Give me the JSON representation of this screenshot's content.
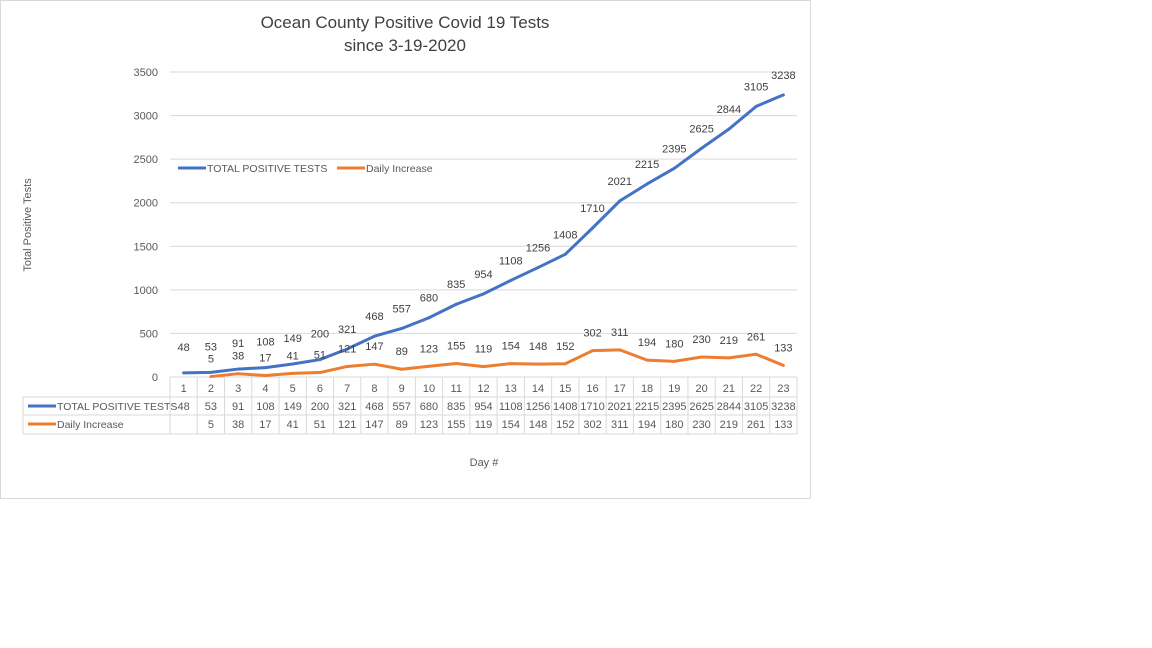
{
  "chart_data": {
    "type": "line",
    "title": [
      "Ocean County Positive Covid 19 Tests",
      "since 3-19-2020"
    ],
    "xlabel": "Day #",
    "ylabel": "Total Positive Tests",
    "ylim": [
      0,
      3500
    ],
    "yticks": [
      0,
      500,
      1000,
      1500,
      2000,
      2500,
      3000,
      3500
    ],
    "grid": true,
    "legend_position": "top-left",
    "data_table": true,
    "categories": [
      1,
      2,
      3,
      4,
      5,
      6,
      7,
      8,
      9,
      10,
      11,
      12,
      13,
      14,
      15,
      16,
      17,
      18,
      19,
      20,
      21,
      22,
      23
    ],
    "series": [
      {
        "name": "TOTAL POSITIVE TESTS",
        "color": "#4472c4",
        "values": [
          48,
          53,
          91,
          108,
          149,
          200,
          321,
          468,
          557,
          680,
          835,
          954,
          1108,
          1256,
          1408,
          1710,
          2021,
          2215,
          2395,
          2625,
          2844,
          3105,
          3238
        ]
      },
      {
        "name": "Daily Increase",
        "color": "#ed7d31",
        "values": [
          null,
          5,
          38,
          17,
          41,
          51,
          121,
          147,
          89,
          123,
          155,
          119,
          154,
          148,
          152,
          302,
          311,
          194,
          180,
          230,
          219,
          261,
          133
        ]
      }
    ]
  }
}
